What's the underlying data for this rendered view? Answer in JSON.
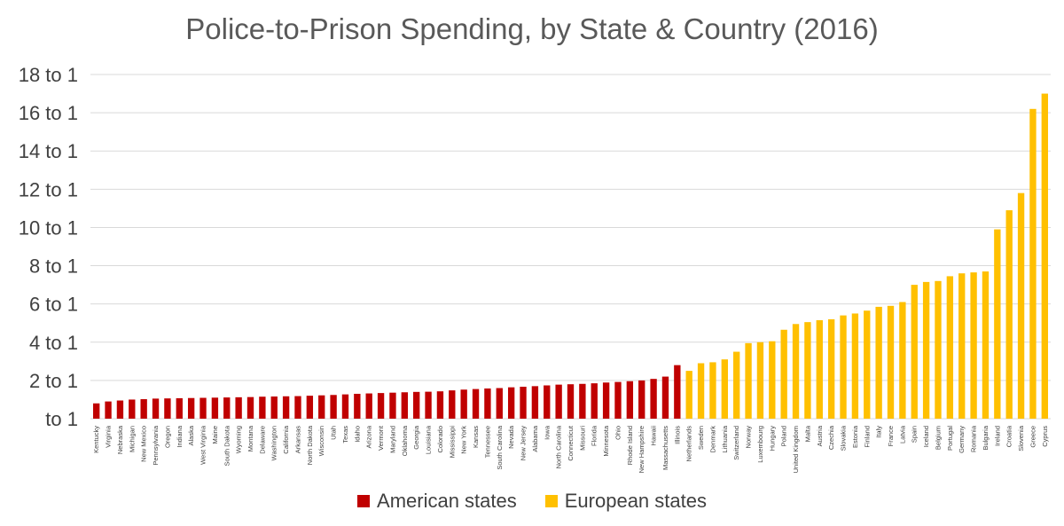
{
  "chart_data": {
    "type": "bar",
    "title": "Police-to-Prison Spending, by State & Country (2016)",
    "xlabel": "",
    "ylabel": "",
    "ylim": [
      0,
      18
    ],
    "y_ticks": [
      0,
      2,
      4,
      6,
      8,
      10,
      12,
      14,
      16,
      18
    ],
    "y_tick_labels": [
      "to 1",
      "2 to 1",
      "4 to 1",
      "6 to 1",
      "8 to 1",
      "10 to 1",
      "12 to 1",
      "14 to 1",
      "16 to 1",
      "18 to 1"
    ],
    "grid": true,
    "legend_position": "bottom-center",
    "colors": {
      "american": "#c00000",
      "european": "#ffc000",
      "grid": "#d9d9d9",
      "tick_text": "#404040"
    },
    "series": [
      {
        "name": "American states",
        "categories": [
          "Kentucky",
          "Virginia",
          "Nebraska",
          "Michigan",
          "New Mexico",
          "Pennsylvania",
          "Oregon",
          "Indiana",
          "Alaska",
          "West Virginia",
          "Maine",
          "South Dakota",
          "Wyoming",
          "Montana",
          "Delaware",
          "Washington",
          "California",
          "Arkansas",
          "North Dakota",
          "Wisconsin",
          "Utah",
          "Texas",
          "Idaho",
          "Arizona",
          "Vermont",
          "Maryland",
          "Oklahoma",
          "Georgia",
          "Louisiana",
          "Colorado",
          "Mississippi",
          "New York",
          "Kansas",
          "Tennessee",
          "South Carolina",
          "Nevada",
          "New Jersey",
          "Alabama",
          "Iowa",
          "North Carolina",
          "Connecticut",
          "Missouri",
          "Florida",
          "Minnesota",
          "Ohio",
          "Rhode Island",
          "New Hampshire",
          "Hawaii",
          "Massachusetts",
          "Illinois"
        ],
        "values": [
          0.8,
          0.9,
          0.95,
          1.0,
          1.02,
          1.05,
          1.06,
          1.07,
          1.08,
          1.09,
          1.1,
          1.11,
          1.12,
          1.13,
          1.15,
          1.16,
          1.17,
          1.18,
          1.2,
          1.22,
          1.24,
          1.27,
          1.3,
          1.32,
          1.34,
          1.36,
          1.38,
          1.4,
          1.41,
          1.43,
          1.48,
          1.52,
          1.55,
          1.58,
          1.6,
          1.64,
          1.67,
          1.7,
          1.74,
          1.78,
          1.8,
          1.82,
          1.85,
          1.89,
          1.92,
          1.96,
          2.0,
          2.08,
          2.2,
          2.8
        ]
      },
      {
        "name": "European states",
        "categories": [
          "Netherlands",
          "Sweden",
          "Denmark",
          "Lithuania",
          "Switzerland",
          "Norway",
          "Luxembourg",
          "Hungary",
          "Poland",
          "United Kingdom",
          "Malta",
          "Austria",
          "Czechia",
          "Slovakia",
          "Estonia",
          "Finland",
          "Italy",
          "France",
          "Latvia",
          "Spain",
          "Iceland",
          "Belgium",
          "Portugal",
          "Germany",
          "Romania",
          "Bulgaria",
          "Ireland",
          "Croatia",
          "Slovenia",
          "Greece",
          "Cyprus"
        ],
        "values": [
          2.5,
          2.9,
          2.95,
          3.1,
          3.5,
          3.95,
          4.0,
          4.05,
          4.65,
          4.95,
          5.05,
          5.15,
          5.2,
          5.4,
          5.5,
          5.65,
          5.85,
          5.9,
          6.1,
          7.0,
          7.15,
          7.2,
          7.45,
          7.6,
          7.65,
          7.7,
          9.9,
          10.9,
          11.8,
          16.2,
          17.0
        ]
      }
    ]
  },
  "legend": [
    {
      "label": "American states",
      "color": "#c00000"
    },
    {
      "label": "European states",
      "color": "#ffc000"
    }
  ]
}
